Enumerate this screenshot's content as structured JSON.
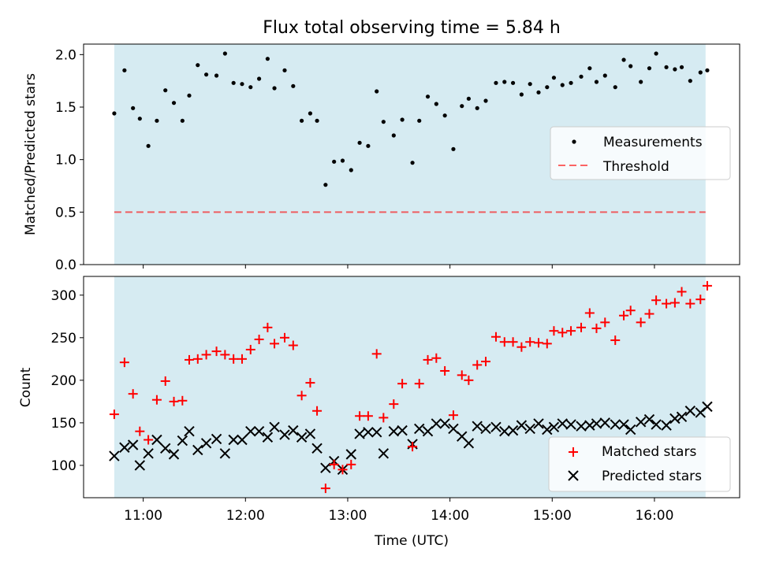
{
  "title": "Flux total observing time = 5.84 h",
  "colors": {
    "observing_window": "#add8e6",
    "measurements": "#000000",
    "threshold": "#ff0000",
    "matched": "#ff0000",
    "predicted": "#000000"
  },
  "chart_data": [
    {
      "type": "scatter",
      "panel": "top",
      "ylabel": "Matched/Predicted stars",
      "xlim": [
        "10:25",
        "16:50"
      ],
      "ylim": [
        0,
        2.1
      ],
      "yticks": [
        0.0,
        0.5,
        1.0,
        1.5,
        2.0
      ],
      "ytick_labels": [
        "0.0",
        "0.5",
        "1.0",
        "1.5",
        "2.0"
      ],
      "observing_window": [
        "10:43",
        "16:30"
      ],
      "legend": {
        "placement": "center-right",
        "entries": [
          "Measurements",
          "Threshold"
        ]
      },
      "threshold": {
        "name": "Threshold",
        "value": 0.5,
        "style": "dashed"
      },
      "series": [
        {
          "name": "Measurements",
          "x": [
            "10:43",
            "10:49",
            "10:54",
            "10:58",
            "11:03",
            "11:08",
            "11:13",
            "11:18",
            "11:23",
            "11:27",
            "11:32",
            "11:37",
            "11:43",
            "11:48",
            "11:53",
            "11:58",
            "12:03",
            "12:08",
            "12:13",
            "12:17",
            "12:23",
            "12:28",
            "12:33",
            "12:38",
            "12:42",
            "12:47",
            "12:52",
            "12:57",
            "13:02",
            "13:07",
            "13:12",
            "13:17",
            "13:21",
            "13:27",
            "13:32",
            "13:38",
            "13:42",
            "13:47",
            "13:52",
            "13:57",
            "14:02",
            "14:07",
            "14:11",
            "14:16",
            "14:21",
            "14:27",
            "14:32",
            "14:37",
            "14:42",
            "14:47",
            "14:52",
            "14:57",
            "15:01",
            "15:06",
            "15:11",
            "15:17",
            "15:22",
            "15:26",
            "15:31",
            "15:37",
            "15:42",
            "15:46",
            "15:52",
            "15:57",
            "16:01",
            "16:07",
            "16:12",
            "16:16",
            "16:21",
            "16:27",
            "16:31"
          ],
          "y": [
            1.44,
            1.85,
            1.49,
            1.39,
            1.13,
            1.37,
            1.66,
            1.54,
            1.37,
            1.61,
            1.9,
            1.81,
            1.8,
            2.01,
            1.73,
            1.72,
            1.69,
            1.77,
            1.96,
            1.68,
            1.85,
            1.7,
            1.37,
            1.44,
            1.37,
            0.76,
            0.98,
            0.99,
            0.9,
            1.16,
            1.13,
            1.65,
            1.36,
            1.23,
            1.38,
            0.97,
            1.37,
            1.6,
            1.53,
            1.42,
            1.1,
            1.51,
            1.58,
            1.49,
            1.56,
            1.73,
            1.74,
            1.73,
            1.62,
            1.72,
            1.64,
            1.69,
            1.78,
            1.71,
            1.73,
            1.79,
            1.87,
            1.74,
            1.8,
            1.69,
            1.95,
            1.89,
            1.74,
            1.87,
            2.01,
            1.88,
            1.86,
            1.88,
            1.75,
            1.83,
            1.85
          ]
        }
      ]
    },
    {
      "type": "scatter",
      "panel": "bottom",
      "xlabel": "Time (UTC)",
      "ylabel": "Count",
      "xlim": [
        "10:25",
        "16:50"
      ],
      "xticks": [
        "11:00",
        "12:00",
        "13:00",
        "14:00",
        "15:00",
        "16:00"
      ],
      "ylim": [
        62,
        322
      ],
      "yticks": [
        100,
        150,
        200,
        250,
        300
      ],
      "observing_window": [
        "10:43",
        "16:30"
      ],
      "legend": {
        "placement": "lower-right",
        "entries": [
          "Matched stars",
          "Predicted stars"
        ]
      },
      "series": [
        {
          "name": "Matched stars",
          "marker": "+",
          "x": [
            "10:43",
            "10:49",
            "10:54",
            "10:58",
            "11:03",
            "11:08",
            "11:13",
            "11:18",
            "11:23",
            "11:27",
            "11:32",
            "11:37",
            "11:43",
            "11:48",
            "11:53",
            "11:58",
            "12:03",
            "12:08",
            "12:13",
            "12:17",
            "12:23",
            "12:28",
            "12:33",
            "12:38",
            "12:42",
            "12:47",
            "12:52",
            "12:57",
            "13:02",
            "13:07",
            "13:12",
            "13:17",
            "13:21",
            "13:27",
            "13:32",
            "13:38",
            "13:42",
            "13:47",
            "13:52",
            "13:57",
            "14:02",
            "14:07",
            "14:11",
            "14:16",
            "14:21",
            "14:27",
            "14:32",
            "14:37",
            "14:42",
            "14:47",
            "14:52",
            "14:57",
            "15:01",
            "15:06",
            "15:11",
            "15:17",
            "15:22",
            "15:26",
            "15:31",
            "15:37",
            "15:42",
            "15:46",
            "15:52",
            "15:57",
            "16:01",
            "16:07",
            "16:12",
            "16:16",
            "16:21",
            "16:27",
            "16:31"
          ],
          "y": [
            160,
            221,
            184,
            140,
            130,
            177,
            199,
            175,
            176,
            224,
            225,
            230,
            234,
            230,
            225,
            225,
            236,
            248,
            262,
            243,
            250,
            241,
            182,
            197,
            164,
            73,
            101,
            95,
            101,
            158,
            158,
            231,
            156,
            172,
            196,
            122,
            196,
            224,
            226,
            211,
            159,
            206,
            200,
            218,
            222,
            251,
            245,
            245,
            239,
            245,
            244,
            243,
            258,
            256,
            258,
            262,
            279,
            261,
            268,
            247,
            276,
            282,
            268,
            278,
            294,
            290,
            291,
            304,
            290,
            295,
            311
          ]
        },
        {
          "name": "Predicted stars",
          "marker": "x",
          "x": [
            "10:43",
            "10:49",
            "10:54",
            "10:58",
            "11:03",
            "11:08",
            "11:13",
            "11:18",
            "11:23",
            "11:27",
            "11:32",
            "11:37",
            "11:43",
            "11:48",
            "11:53",
            "11:58",
            "12:03",
            "12:08",
            "12:13",
            "12:17",
            "12:23",
            "12:28",
            "12:33",
            "12:38",
            "12:42",
            "12:47",
            "12:52",
            "12:57",
            "13:02",
            "13:07",
            "13:12",
            "13:17",
            "13:21",
            "13:27",
            "13:32",
            "13:38",
            "13:42",
            "13:47",
            "13:52",
            "13:57",
            "14:02",
            "14:07",
            "14:11",
            "14:16",
            "14:21",
            "14:27",
            "14:32",
            "14:37",
            "14:42",
            "14:47",
            "14:52",
            "14:57",
            "15:01",
            "15:06",
            "15:11",
            "15:17",
            "15:22",
            "15:26",
            "15:31",
            "15:37",
            "15:42",
            "15:46",
            "15:52",
            "15:57",
            "16:01",
            "16:07",
            "16:12",
            "16:16",
            "16:21",
            "16:27",
            "16:31"
          ],
          "y": [
            111,
            121,
            124,
            100,
            114,
            130,
            120,
            113,
            129,
            140,
            118,
            126,
            131,
            114,
            130,
            130,
            140,
            140,
            133,
            145,
            136,
            141,
            133,
            137,
            120,
            97,
            105,
            95,
            113,
            137,
            139,
            139,
            114,
            140,
            141,
            125,
            143,
            140,
            149,
            149,
            143,
            134,
            126,
            146,
            143,
            145,
            140,
            141,
            147,
            143,
            149,
            142,
            145,
            149,
            148,
            146,
            147,
            149,
            150,
            148,
            148,
            142,
            151,
            154,
            148,
            147,
            155,
            157,
            164,
            162,
            169
          ]
        }
      ]
    }
  ]
}
